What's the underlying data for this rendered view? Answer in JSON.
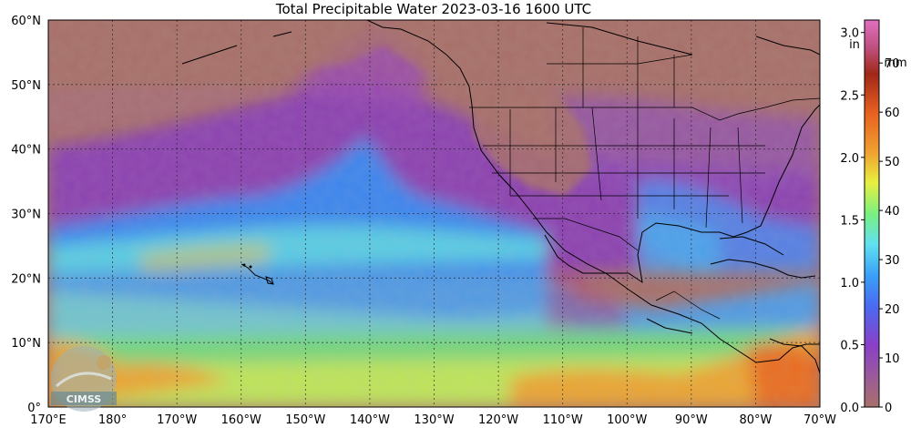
{
  "title": "Total Precipitable Water  2023-03-16 1600 UTC",
  "logo_text": "CIMSS",
  "map": {
    "lon_range_deg_east": [
      170,
      290
    ],
    "lat_range_deg": [
      0,
      60
    ],
    "lat_labels": [
      "0°",
      "10°N",
      "20°N",
      "30°N",
      "40°N",
      "50°N",
      "60°N"
    ],
    "lon_labels": [
      "170°E",
      "180°",
      "170°W",
      "160°W",
      "150°W",
      "140°W",
      "130°W",
      "120°W",
      "110°W",
      "100°W",
      "90°W",
      "80°W",
      "70°W"
    ],
    "grid_lines": "dashed",
    "land_background_color": "#a8706a"
  },
  "colorbar": {
    "unit_in": "in",
    "unit_mm": "mm",
    "in_ticks": [
      "0.0",
      "0.5",
      "1.0",
      "1.5",
      "2.0",
      "2.5",
      "3.0"
    ],
    "mm_ticks": [
      "0",
      "10",
      "20",
      "30",
      "40",
      "50",
      "60",
      "70"
    ],
    "range_in": [
      0,
      3.1
    ],
    "colors": [
      "#a8706a",
      "#9a5a9a",
      "#8a3fc8",
      "#4a6af0",
      "#3aa0f8",
      "#60e0f0",
      "#7af080",
      "#e8f040",
      "#f0a030",
      "#e86020",
      "#a02818",
      "#e070c0"
    ]
  },
  "fields": {
    "dry_region_color": "#a8706a",
    "mid_color": "#8a3fb8",
    "moist_band_color": "#3fa0f0",
    "tropical_color": "#70e080",
    "wet_color": "#f0a030"
  }
}
